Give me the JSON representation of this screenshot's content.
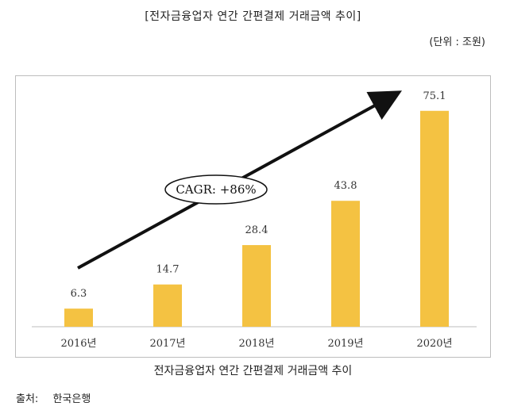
{
  "header": {
    "title": "[전자금융업자 연간 간편결제 거래금액 추이]",
    "unit": "(단위 : 조원)"
  },
  "caption": "전자금융업자 연간 간편결제 거래금액 추이",
  "source": {
    "label": "출처:",
    "value": "한국은행"
  },
  "annotation": {
    "text": "CAGR: +86%"
  },
  "colors": {
    "bar": "#F4C242",
    "arrow": "#111111",
    "axis": "#bdbdbd",
    "text": "#333333"
  },
  "chart_data": {
    "type": "bar",
    "categories": [
      "2016년",
      "2017년",
      "2018년",
      "2019년",
      "2020년"
    ],
    "values": [
      6.3,
      14.7,
      28.4,
      43.8,
      75.1
    ],
    "value_labels": [
      "6.3",
      "14.7",
      "28.4",
      "43.8",
      "75.1"
    ],
    "title": "[전자금융업자 연간 간편결제 거래금액 추이]",
    "xlabel": "",
    "ylabel": "",
    "ylim": [
      0,
      80
    ],
    "grid": false,
    "legend": "none"
  }
}
